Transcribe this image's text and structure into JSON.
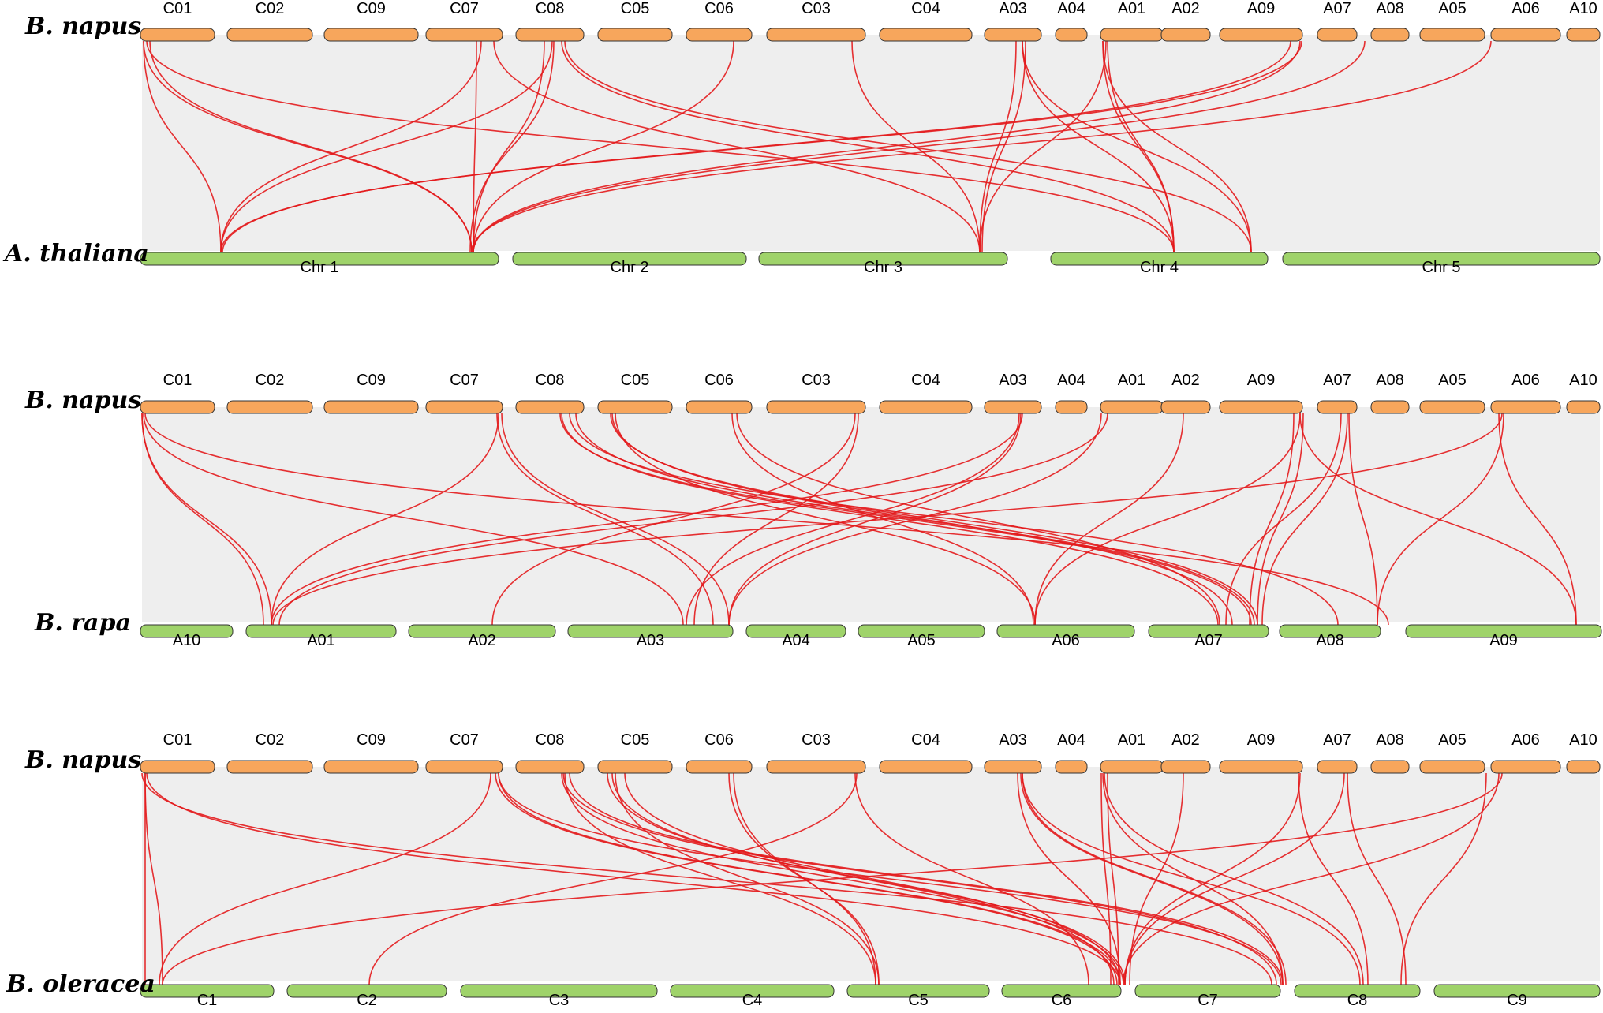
{
  "colors": {
    "napus": "#f7a65c",
    "other": "#9fd36a",
    "background_links": "#eeeeee",
    "syntenic_links": "#e31a1c",
    "outline": "#333333"
  },
  "panels": [
    {
      "top_species": "B. napus",
      "bottom_species": "A. thaliana",
      "top_chromosomes": [
        "C01",
        "C02",
        "C09",
        "C07",
        "C08",
        "C05",
        "C06",
        "C03",
        "C04",
        "A03",
        "A04",
        "A01",
        "A02",
        "A09",
        "A07",
        "A08",
        "A05",
        "A06",
        "A10"
      ],
      "bottom_chromosomes": [
        "Chr 1",
        "Chr 2",
        "Chr 3",
        "Chr 4",
        "Chr 5"
      ]
    },
    {
      "top_species": "B. napus",
      "bottom_species": "B. rapa",
      "top_chromosomes": [
        "C01",
        "C02",
        "C09",
        "C07",
        "C08",
        "C05",
        "C06",
        "C03",
        "C04",
        "A03",
        "A04",
        "A01",
        "A02",
        "A09",
        "A07",
        "A08",
        "A05",
        "A06",
        "A10"
      ],
      "bottom_chromosomes": [
        "A10",
        "A01",
        "A02",
        "A03",
        "A04",
        "A05",
        "A06",
        "A07",
        "A08",
        "A09"
      ]
    },
    {
      "top_species": "B. napus",
      "bottom_species": "B. oleracea",
      "top_chromosomes": [
        "C01",
        "C02",
        "C09",
        "C07",
        "C08",
        "C05",
        "C06",
        "C03",
        "C04",
        "A03",
        "A04",
        "A01",
        "A02",
        "A09",
        "A07",
        "A08",
        "A05",
        "A06",
        "A10"
      ],
      "bottom_chromosomes": [
        "C1",
        "C2",
        "C3",
        "C4",
        "C5",
        "C6",
        "C7",
        "C8",
        "C9"
      ]
    }
  ]
}
